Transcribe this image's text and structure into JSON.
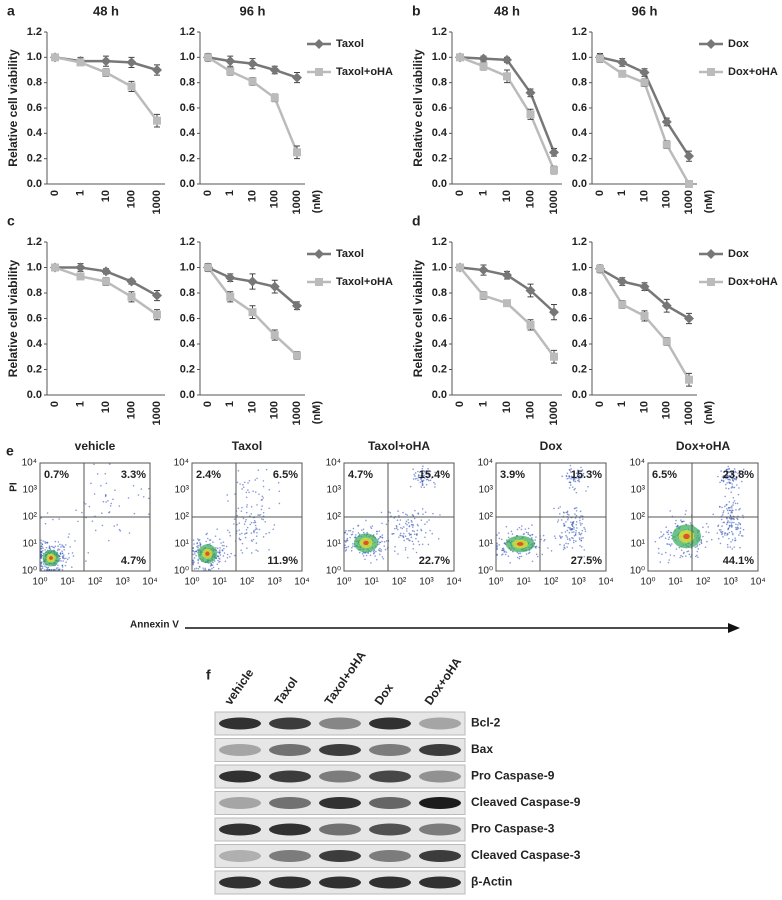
{
  "chart_data": [
    {
      "type": "line",
      "panel_label": "a",
      "title": "48 h",
      "ylabel": "Relative cell viability",
      "categories": [
        "0",
        "1",
        "10",
        "100",
        "1000"
      ],
      "ylim": [
        0,
        1.2
      ],
      "yticks": [
        {
          "value": 0,
          "label": "0.0"
        },
        0.2,
        0.4,
        0.6,
        0.8,
        {
          "value": 1,
          "label": "1.0"
        },
        1.2
      ],
      "series": [
        {
          "color": "#777777",
          "marker": "diamond",
          "values": [
            1.0,
            0.97,
            0.97,
            0.96,
            0.9
          ],
          "errors": [
            0.02,
            0.03,
            0.04,
            0.04,
            0.04
          ]
        },
        {
          "color": "#bbbbbb",
          "marker": "square",
          "values": [
            1.0,
            0.96,
            0.88,
            0.77,
            0.5
          ],
          "errors": [
            0.02,
            0.02,
            0.03,
            0.04,
            0.05
          ]
        }
      ]
    },
    {
      "type": "line",
      "title": "96 h",
      "xlabel": "(nM)",
      "legend": "right",
      "categories": [
        "0",
        "1",
        "10",
        "100",
        "1000"
      ],
      "ylim": [
        0,
        1.2
      ],
      "yticks": [
        {
          "value": 0,
          "label": "0.0"
        },
        0.2,
        0.4,
        0.6,
        0.8,
        {
          "value": 1,
          "label": "1.0"
        },
        1.2
      ],
      "series": [
        {
          "name": "Taxol",
          "color": "#777777",
          "marker": "diamond",
          "values": [
            1.0,
            0.97,
            0.95,
            0.9,
            0.84
          ],
          "errors": [
            0.03,
            0.04,
            0.04,
            0.03,
            0.04
          ]
        },
        {
          "name": "Taxol+oHA",
          "color": "#bbbbbb",
          "marker": "square",
          "values": [
            1.0,
            0.89,
            0.81,
            0.68,
            0.25
          ],
          "errors": [
            0.03,
            0.03,
            0.03,
            0.03,
            0.05
          ]
        }
      ]
    },
    {
      "type": "line",
      "panel_label": "b",
      "title": "48 h",
      "ylabel": "Relative cell viability",
      "categories": [
        "0",
        "1",
        "10",
        "100",
        "1000"
      ],
      "ylim": [
        0,
        1.2
      ],
      "yticks": [
        {
          "value": 0,
          "label": "0.0"
        },
        0.2,
        0.4,
        0.6,
        0.8,
        {
          "value": 1,
          "label": "1.0"
        },
        1.2
      ],
      "series": [
        {
          "color": "#777777",
          "marker": "diamond",
          "values": [
            1.0,
            0.99,
            0.98,
            0.72,
            0.25
          ],
          "errors": [
            0.02,
            0.02,
            0.02,
            0.03,
            0.03
          ]
        },
        {
          "color": "#bbbbbb",
          "marker": "square",
          "values": [
            1.0,
            0.93,
            0.85,
            0.55,
            0.11
          ],
          "errors": [
            0.02,
            0.03,
            0.05,
            0.04,
            0.03
          ]
        }
      ]
    },
    {
      "type": "line",
      "title": "96 h",
      "xlabel": "(nM)",
      "legend": "right",
      "categories": [
        "0",
        "1",
        "10",
        "100",
        "1000"
      ],
      "ylim": [
        0,
        1.2
      ],
      "yticks": [
        {
          "value": 0,
          "label": "0.0"
        },
        0.2,
        0.4,
        0.6,
        0.8,
        {
          "value": 1,
          "label": "1.0"
        },
        1.2
      ],
      "series": [
        {
          "name": "Dox",
          "color": "#777777",
          "marker": "diamond",
          "values": [
            1.0,
            0.96,
            0.88,
            0.49,
            0.22
          ],
          "errors": [
            0.03,
            0.03,
            0.03,
            0.03,
            0.04
          ]
        },
        {
          "name": "Dox+oHA",
          "color": "#bbbbbb",
          "marker": "square",
          "values": [
            0.99,
            0.87,
            0.8,
            0.31,
            0.0
          ],
          "errors": [
            0.03,
            0.02,
            0.03,
            0.03,
            0.01
          ]
        }
      ]
    },
    {
      "type": "line",
      "panel_label": "c",
      "ylabel": "Relative cell viability",
      "categories": [
        "0",
        "1",
        "10",
        "100",
        "1000"
      ],
      "ylim": [
        0,
        1.2
      ],
      "yticks": [
        {
          "value": 0,
          "label": "0.0"
        },
        0.2,
        0.4,
        0.6,
        0.8,
        {
          "value": 1,
          "label": "1.0"
        },
        1.2
      ],
      "series": [
        {
          "color": "#777777",
          "marker": "diamond",
          "values": [
            1.0,
            1.0,
            0.97,
            0.89,
            0.78
          ],
          "errors": [
            0.02,
            0.03,
            0.02,
            0.02,
            0.04
          ]
        },
        {
          "color": "#bbbbbb",
          "marker": "square",
          "values": [
            1.0,
            0.93,
            0.89,
            0.77,
            0.63
          ],
          "errors": [
            0.02,
            0.02,
            0.03,
            0.04,
            0.04
          ]
        }
      ]
    },
    {
      "type": "line",
      "xlabel": "(nM)",
      "legend": "right",
      "categories": [
        "0",
        "1",
        "10",
        "100",
        "1000"
      ],
      "ylim": [
        0,
        1.2
      ],
      "yticks": [
        {
          "value": 0,
          "label": "0.0"
        },
        0.2,
        0.4,
        0.6,
        0.8,
        {
          "value": 1,
          "label": "1.0"
        },
        1.2
      ],
      "series": [
        {
          "name": "Taxol",
          "color": "#777777",
          "marker": "diamond",
          "values": [
            1.0,
            0.92,
            0.89,
            0.85,
            0.7
          ],
          "errors": [
            0.03,
            0.03,
            0.06,
            0.05,
            0.03
          ]
        },
        {
          "name": "Taxol+oHA",
          "color": "#bbbbbb",
          "marker": "square",
          "values": [
            1.0,
            0.77,
            0.65,
            0.47,
            0.31
          ],
          "errors": [
            0.03,
            0.04,
            0.05,
            0.04,
            0.03
          ]
        }
      ]
    },
    {
      "type": "line",
      "panel_label": "d",
      "ylabel": "Relative cell viability",
      "categories": [
        "0",
        "1",
        "10",
        "100",
        "1000"
      ],
      "ylim": [
        0,
        1.2
      ],
      "yticks": [
        {
          "value": 0,
          "label": "0.0"
        },
        0.2,
        0.4,
        0.6,
        0.8,
        {
          "value": 1,
          "label": "1.0"
        },
        1.2
      ],
      "series": [
        {
          "color": "#777777",
          "marker": "diamond",
          "values": [
            1.0,
            0.98,
            0.94,
            0.82,
            0.65
          ],
          "errors": [
            0.02,
            0.04,
            0.03,
            0.05,
            0.06
          ]
        },
        {
          "color": "#bbbbbb",
          "marker": "square",
          "values": [
            1.0,
            0.78,
            0.72,
            0.55,
            0.3
          ],
          "errors": [
            0.02,
            0.03,
            0.01,
            0.04,
            0.05
          ]
        }
      ]
    },
    {
      "type": "line",
      "xlabel": "(nM)",
      "legend": "right",
      "categories": [
        "0",
        "1",
        "10",
        "100",
        "1000"
      ],
      "ylim": [
        0,
        1.2
      ],
      "yticks": [
        {
          "value": 0,
          "label": "0.0"
        },
        0.2,
        0.4,
        0.6,
        0.8,
        {
          "value": 1,
          "label": "1.0"
        },
        1.2
      ],
      "series": [
        {
          "name": "Dox",
          "color": "#777777",
          "marker": "diamond",
          "values": [
            0.99,
            0.89,
            0.85,
            0.7,
            0.6
          ],
          "errors": [
            0.03,
            0.03,
            0.03,
            0.05,
            0.04
          ]
        },
        {
          "name": "Dox+oHA",
          "color": "#bbbbbb",
          "marker": "square",
          "values": [
            0.99,
            0.71,
            0.62,
            0.42,
            0.12
          ],
          "errors": [
            0.03,
            0.03,
            0.04,
            0.03,
            0.05
          ]
        }
      ]
    }
  ],
  "flow_cytometry": {
    "panel_label": "e",
    "ylabel": "PI",
    "xlabel": "Annexin V",
    "ticks": [
      "10⁰",
      "10¹",
      "10²",
      "10³",
      "10⁴"
    ],
    "plots": [
      {
        "title": "vehicle",
        "upper_left": "0.7%",
        "upper_right": "3.3%",
        "lower_right": "4.7%"
      },
      {
        "title": "Taxol",
        "upper_left": "2.4%",
        "upper_right": "6.5%",
        "lower_right": "11.9%"
      },
      {
        "title": "Taxol+oHA",
        "upper_left": "4.7%",
        "upper_right": "15.4%",
        "lower_right": "22.7%"
      },
      {
        "title": "Dox",
        "upper_left": "3.9%",
        "upper_right": "15.3%",
        "lower_right": "27.5%"
      },
      {
        "title": "Dox+oHA",
        "upper_left": "6.5%",
        "upper_right": "23.8%",
        "lower_right": "44.1%"
      }
    ]
  },
  "western_blot": {
    "panel_label": "f",
    "lanes": [
      "vehicle",
      "Taxol",
      "Taxol+oHA",
      "Dox",
      "Dox+oHA"
    ],
    "rows": [
      {
        "label": "Bcl-2",
        "intensity": [
          0.85,
          0.8,
          0.45,
          0.85,
          0.3
        ]
      },
      {
        "label": "Bax",
        "intensity": [
          0.3,
          0.55,
          0.8,
          0.5,
          0.8
        ]
      },
      {
        "label": "Pro Caspase-9",
        "intensity": [
          0.85,
          0.8,
          0.5,
          0.75,
          0.4
        ]
      },
      {
        "label": "Cleaved Caspase-9",
        "intensity": [
          0.3,
          0.55,
          0.85,
          0.6,
          0.95
        ]
      },
      {
        "label": "Pro Caspase-3",
        "intensity": [
          0.85,
          0.85,
          0.55,
          0.7,
          0.5
        ]
      },
      {
        "label": "Cleaved Caspase-3",
        "intensity": [
          0.25,
          0.5,
          0.8,
          0.5,
          0.8
        ]
      },
      {
        "label": "β-Actin",
        "intensity": [
          0.85,
          0.85,
          0.85,
          0.85,
          0.85
        ]
      }
    ]
  }
}
